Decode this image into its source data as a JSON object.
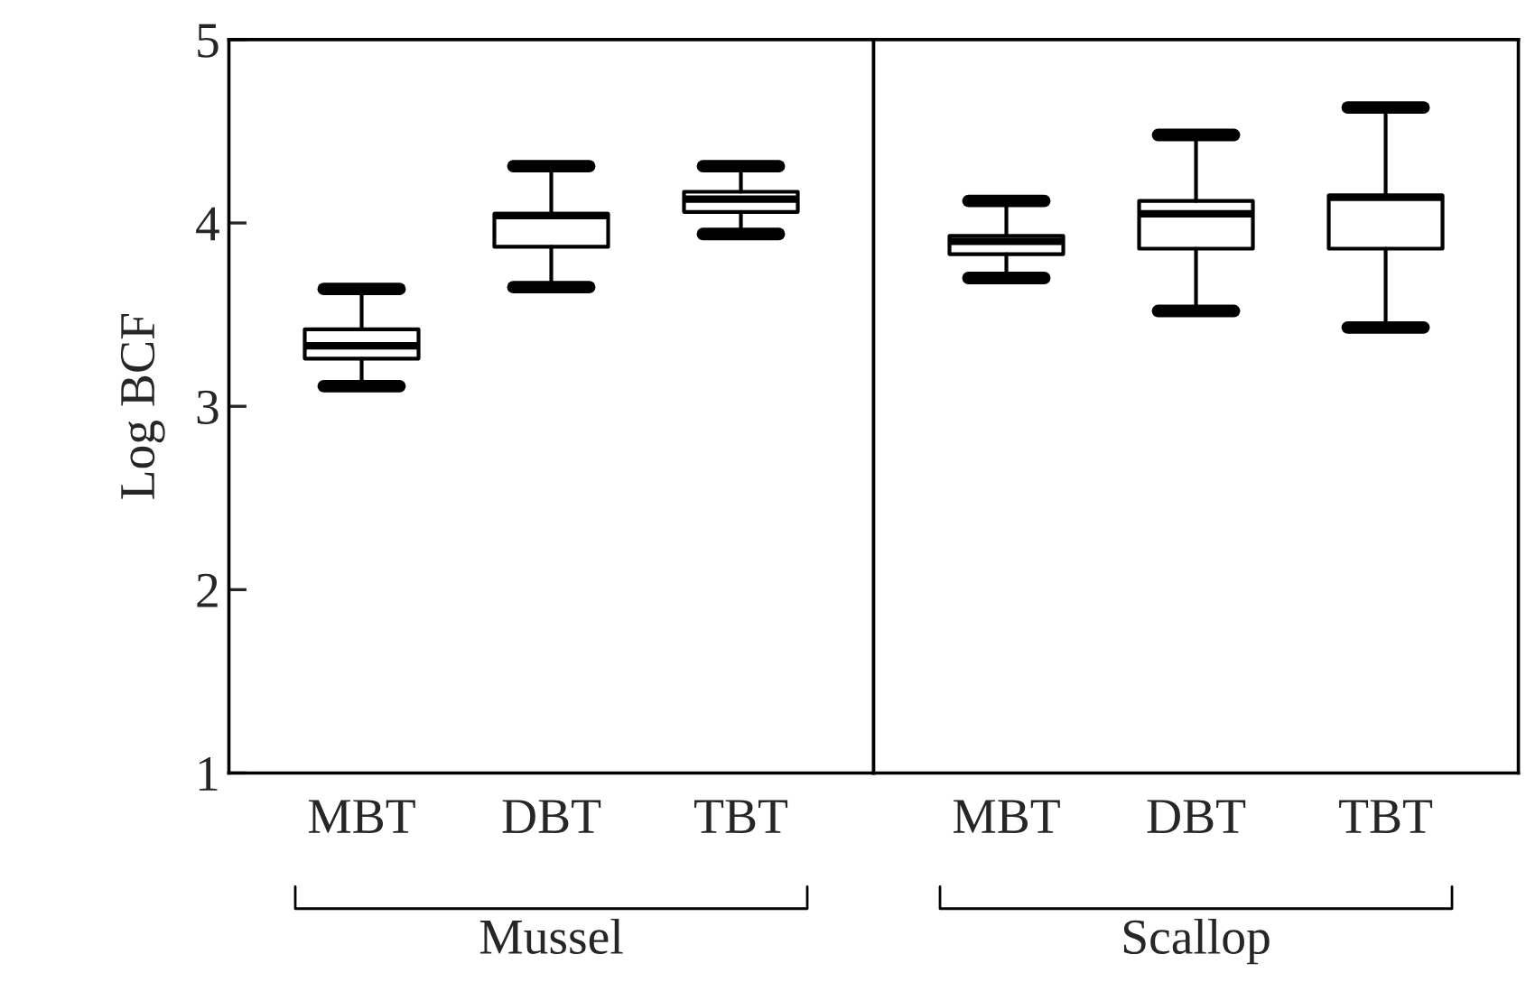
{
  "chart_data": [
    {
      "type": "box",
      "ylabel": "Log BCF",
      "xlabel": "Mussel",
      "categories": [
        "MBT",
        "DBT",
        "TBT"
      ],
      "ylim": [
        1,
        5
      ],
      "yticks": [
        1,
        2,
        3,
        4,
        5
      ],
      "grid": false,
      "boxes": [
        {
          "low": 3.11,
          "q1": 3.26,
          "median": 3.33,
          "q3": 3.42,
          "high": 3.64
        },
        {
          "low": 3.65,
          "q1": 3.87,
          "median": 4.04,
          "q3": 4.05,
          "high": 4.31
        },
        {
          "low": 3.94,
          "q1": 4.06,
          "median": 4.13,
          "q3": 4.17,
          "high": 4.31
        }
      ]
    },
    {
      "type": "box",
      "xlabel": "Scallop",
      "categories": [
        "MBT",
        "DBT",
        "TBT"
      ],
      "ylim": [
        1,
        5
      ],
      "tick_labels": "x",
      "grid": false,
      "boxes": [
        {
          "low": 3.7,
          "q1": 3.83,
          "median": 3.9,
          "q3": 3.93,
          "high": 4.12
        },
        {
          "low": 3.52,
          "q1": 3.86,
          "median": 4.05,
          "q3": 4.12,
          "high": 4.48
        },
        {
          "low": 3.43,
          "q1": 3.86,
          "median": 4.14,
          "q3": 4.15,
          "high": 4.63
        }
      ]
    }
  ]
}
